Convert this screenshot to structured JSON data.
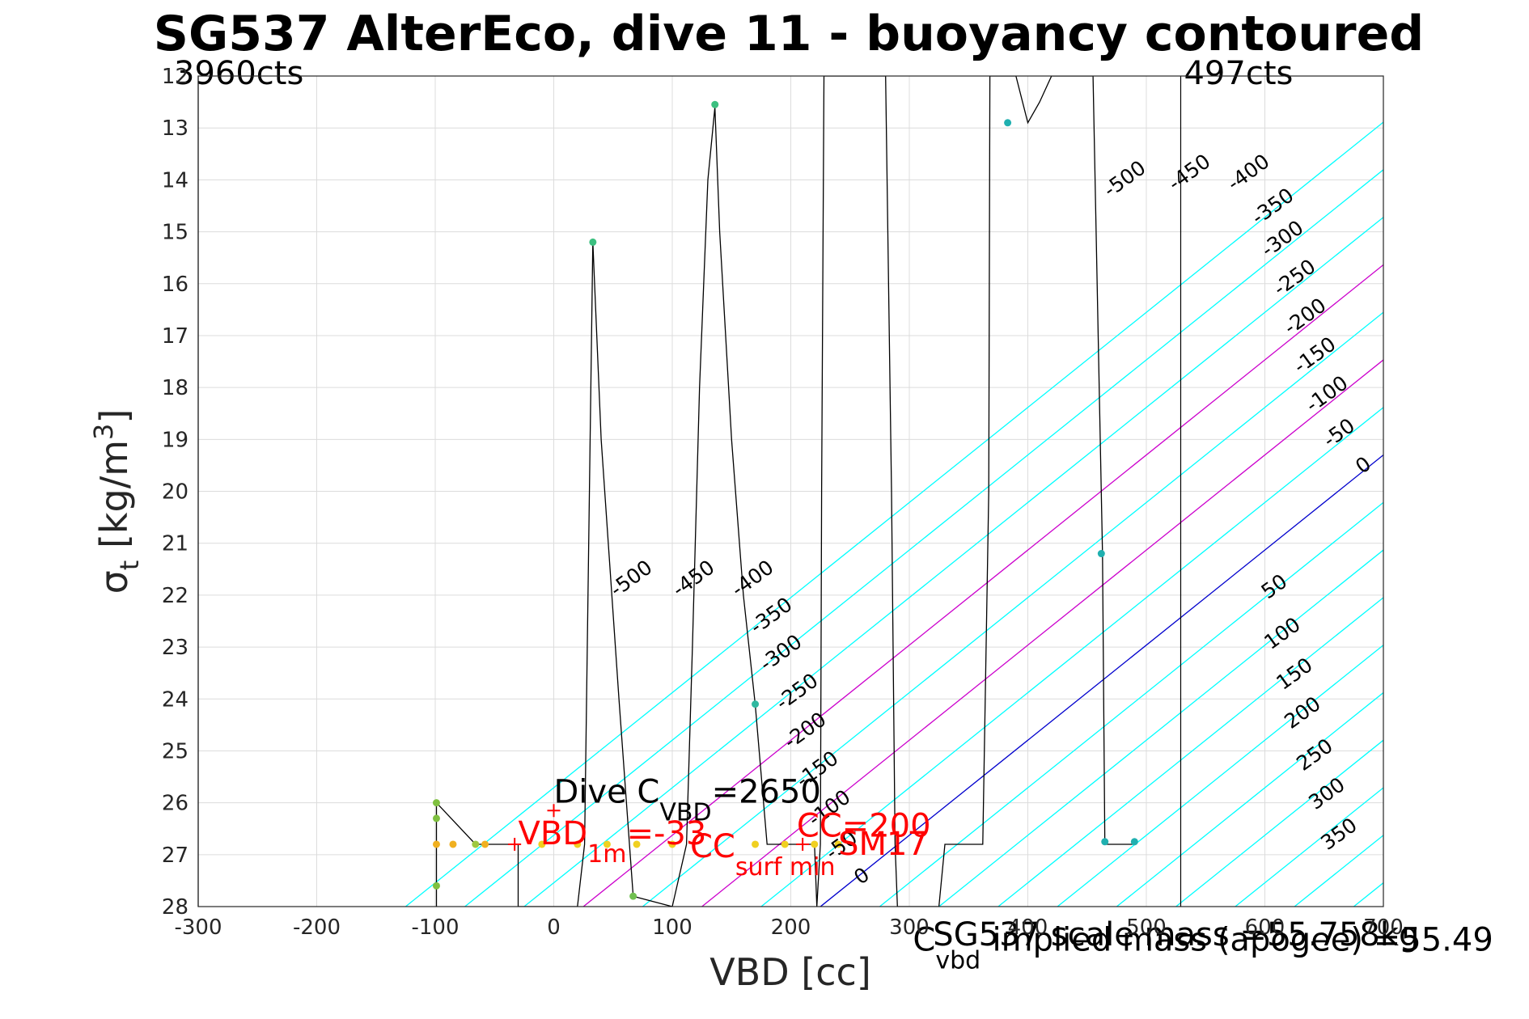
{
  "chart_data": {
    "type": "line",
    "title": "SG537 AlterEco, dive 11 - buoyancy contoured",
    "xlabel": "VBD [cc]",
    "ylabel": {
      "symbol": "σ",
      "sub": "t",
      "unit": " [kg/m",
      "sup": "3",
      "close": "]"
    },
    "xlim": [
      -300,
      700
    ],
    "ylim": [
      28,
      12
    ],
    "y_reversed": true,
    "grid": true,
    "xticks": [
      -300,
      -200,
      -100,
      0,
      100,
      200,
      300,
      400,
      500,
      600,
      700
    ],
    "yticks": [
      12,
      13,
      14,
      15,
      16,
      17,
      18,
      19,
      20,
      21,
      22,
      23,
      24,
      25,
      26,
      27,
      28
    ],
    "counts_lines": [
      {
        "label": "3960cts",
        "x": -300,
        "label_pos": "left"
      },
      {
        "label": "497cts",
        "x": 529,
        "label_pos": "right"
      }
    ],
    "contours": {
      "levels": [
        -700,
        -650,
        -600,
        -550,
        -500,
        -450,
        -400,
        -350,
        -300,
        -250,
        -200,
        -150,
        -100,
        -50,
        0,
        50,
        100,
        150,
        200,
        250,
        300,
        350
      ],
      "zero_x_at_y28": 225,
      "zero_x_at_y19.3": 700,
      "spacing_cc_per_50": 50,
      "colors": {
        "default": "#00ffff",
        "zero": "#0000cd",
        "highlight": "#cc00cc"
      },
      "highlight_levels": [
        100,
        200
      ],
      "labels_upper": [
        "-500",
        "-450",
        "-400",
        "-350",
        "-300",
        "-250",
        "-200",
        "-150",
        "-100",
        "-50",
        "0"
      ],
      "labels_lower_left": [
        "-500",
        "-450",
        "-400",
        "-350",
        "-300",
        "-250",
        "-200",
        "-150",
        "-100",
        "-50",
        "0"
      ],
      "labels_lower_right": [
        "50",
        "100",
        "150",
        "200",
        "250",
        "300",
        "350"
      ]
    },
    "series": [
      {
        "color": "#000000",
        "x": [
          -99,
          -99,
          -99,
          -99,
          -99,
          -99,
          -99,
          -66,
          -30,
          -30,
          0,
          20,
          26,
          33,
          40,
          55,
          67,
          100,
          112,
          117,
          123,
          130,
          136,
          140,
          150,
          160,
          170,
          180,
          190,
          195,
          200,
          210,
          220,
          222,
          225,
          226,
          228,
          230,
          240,
          260,
          280,
          285,
          288,
          290,
          300,
          310,
          320,
          325,
          330,
          340,
          350,
          362,
          367,
          368,
          370,
          372,
          376,
          380,
          385,
          390,
          400,
          410,
          420,
          430,
          440,
          450,
          455,
          463,
          465,
          490
        ],
        "y": [
          26.8,
          27.6,
          28,
          27.6,
          26.3,
          26.8,
          26.0,
          26.8,
          26.8,
          28,
          28,
          28,
          26.8,
          15.2,
          19,
          24,
          27.8,
          28,
          26.8,
          23,
          18,
          14,
          12.6,
          15,
          19,
          22,
          24.1,
          26.8,
          26.8,
          26.8,
          26.8,
          26.8,
          26.8,
          28,
          26.8,
          20,
          12,
          12,
          12,
          12,
          12,
          20,
          26.8,
          28,
          28,
          28,
          28,
          28,
          26.8,
          26.8,
          26.8,
          26.8,
          20,
          12,
          12,
          12,
          12,
          12,
          12,
          12,
          12.9,
          12.5,
          12,
          12,
          12,
          12,
          12,
          21.2,
          26.8,
          26.8
        ]
      }
    ],
    "points": [
      {
        "x": -99,
        "y": 26.8,
        "color": "#f0b020"
      },
      {
        "x": -99,
        "y": 27.6,
        "color": "#7fc040"
      },
      {
        "x": -99,
        "y": 26.3,
        "color": "#7fc040"
      },
      {
        "x": -99,
        "y": 26.0,
        "color": "#7fc040"
      },
      {
        "x": -85,
        "y": 26.8,
        "color": "#f0b020"
      },
      {
        "x": -66,
        "y": 26.8,
        "color": "#9ec840"
      },
      {
        "x": -58,
        "y": 26.8,
        "color": "#f0b020"
      },
      {
        "x": -10,
        "y": 26.8,
        "color": "#f0d020"
      },
      {
        "x": 20,
        "y": 26.8,
        "color": "#f0d020"
      },
      {
        "x": 45,
        "y": 26.8,
        "color": "#f0d020"
      },
      {
        "x": 70,
        "y": 26.8,
        "color": "#f0d020"
      },
      {
        "x": 100,
        "y": 26.8,
        "color": "#f0d020"
      },
      {
        "x": 33,
        "y": 15.2,
        "color": "#3cc080"
      },
      {
        "x": 67,
        "y": 27.8,
        "color": "#70c050"
      },
      {
        "x": 136,
        "y": 12.55,
        "color": "#3cc080"
      },
      {
        "x": 170,
        "y": 24.1,
        "color": "#30b8a0"
      },
      {
        "x": 170,
        "y": 26.8,
        "color": "#f0d020"
      },
      {
        "x": 195,
        "y": 26.8,
        "color": "#f0d020"
      },
      {
        "x": 220,
        "y": 26.8,
        "color": "#f0d020"
      },
      {
        "x": 240,
        "y": 26.8,
        "color": "#f0d020"
      },
      {
        "x": 383,
        "y": 12.9,
        "color": "#20b0b0"
      },
      {
        "x": 462,
        "y": 21.2,
        "color": "#20b0b0"
      },
      {
        "x": 465,
        "y": 26.75,
        "color": "#20b0b0"
      },
      {
        "x": 490,
        "y": 26.75,
        "color": "#20b0b0"
      }
    ],
    "red_markers": [
      {
        "x": 0,
        "y": 26.15
      },
      {
        "x": -33,
        "y": 26.8
      },
      {
        "x": 210,
        "y": 26.8
      }
    ],
    "annotations": [
      {
        "text": "Dive C",
        "sub": "VBD",
        "rest": "=2650",
        "color": "#000000",
        "x": 0,
        "y": 26.0
      },
      {
        "text": "VBD",
        "sub": "1m",
        "rest": "=-33",
        "color": "#ff0000",
        "x": -30,
        "y": 26.8
      },
      {
        "text": "CC",
        "sub": "surf min",
        "rest": "",
        "color": "#ff0000",
        "x": 115,
        "y": 27.05
      },
      {
        "text": "CC",
        "sub": "",
        "rest": "=200",
        "color": "#ff0000",
        "x": 205,
        "y": 26.65
      },
      {
        "text": "SM17",
        "sub": "",
        "rest": "",
        "color": "#ff0000",
        "x": 240,
        "y": 27.0
      },
      {
        "text": "C",
        "sub": "vbd",
        "rest": "",
        "color": "#000000",
        "x": 303,
        "y": 28.85
      },
      {
        "text": "SG537 scale mass =55.758kg",
        "sub": "",
        "rest": "",
        "color": "#000000",
        "x": 320,
        "y": 28.75
      },
      {
        "text": "implied mass (apogee) =55.49",
        "sub": "",
        "rest": "",
        "color": "#000000",
        "x": 370,
        "y": 28.85
      }
    ]
  }
}
